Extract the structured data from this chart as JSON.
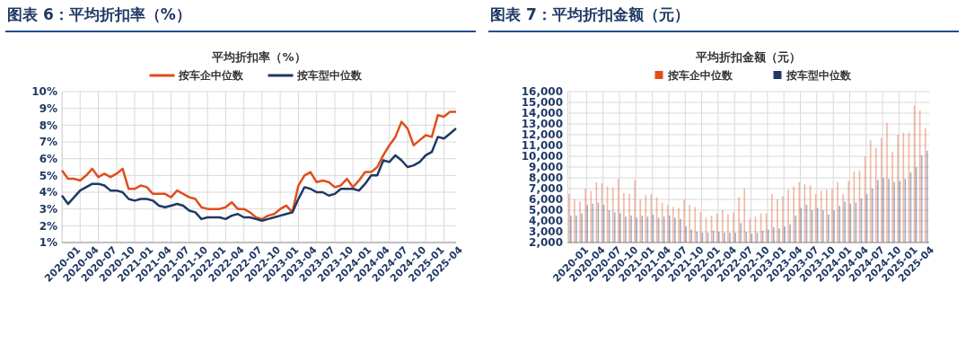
{
  "chart_data": [
    {
      "type": "line",
      "title": "图表 6：平均折扣率（%）",
      "subtitle": "平均折扣率（%）",
      "categories": [
        "2020-01",
        null,
        null,
        "2020-04",
        null,
        null,
        "2020-07",
        null,
        null,
        "2020-10",
        null,
        null,
        "2021-01",
        null,
        null,
        "2021-04",
        null,
        null,
        "2021-07",
        null,
        null,
        "2021-10",
        null,
        null,
        "2022-01",
        null,
        null,
        "2022-04",
        null,
        null,
        "2022-07",
        null,
        null,
        "2022-10",
        null,
        null,
        "2023-01",
        null,
        null,
        "2023-04",
        null,
        null,
        "2023-07",
        null,
        null,
        "2023-10",
        null,
        null,
        "2024-01",
        null,
        null,
        "2024-04",
        null,
        null,
        "2024-07",
        null,
        null,
        "2024-10",
        null,
        null,
        "2025-01",
        null,
        null,
        "2025-04",
        null,
        null
      ],
      "series": [
        {
          "name": "按车企中位数",
          "color": "#e04e1b",
          "values": [
            5.3,
            4.8,
            4.8,
            4.7,
            5.0,
            5.4,
            4.9,
            5.1,
            4.9,
            5.1,
            5.4,
            4.2,
            4.2,
            4.4,
            4.3,
            3.9,
            3.9,
            3.9,
            3.7,
            4.1,
            3.9,
            3.7,
            3.6,
            3.1,
            3.0,
            3.0,
            3.0,
            3.1,
            3.4,
            3.0,
            3.0,
            2.8,
            2.5,
            2.4,
            2.6,
            2.7,
            3.0,
            3.2,
            2.8,
            4.4,
            5.0,
            5.2,
            4.6,
            4.7,
            4.6,
            4.3,
            4.4,
            4.8,
            4.3,
            4.7,
            5.2,
            5.2,
            5.5,
            6.2,
            6.8,
            7.3,
            8.2,
            7.8,
            6.8,
            7.1,
            7.4,
            7.3,
            8.6,
            8.5,
            8.8,
            8.8
          ]
        },
        {
          "name": "按车型中位数",
          "color": "#1f3864",
          "values": [
            3.8,
            3.3,
            3.7,
            4.1,
            4.3,
            4.5,
            4.5,
            4.4,
            4.1,
            4.1,
            4.0,
            3.6,
            3.5,
            3.6,
            3.6,
            3.5,
            3.2,
            3.1,
            3.2,
            3.3,
            3.2,
            2.9,
            2.8,
            2.4,
            2.5,
            2.5,
            2.5,
            2.4,
            2.6,
            2.7,
            2.5,
            2.5,
            2.4,
            2.3,
            2.4,
            2.5,
            2.6,
            2.7,
            2.8,
            3.6,
            4.3,
            4.2,
            4.0,
            4.0,
            3.8,
            3.9,
            4.2,
            4.2,
            4.2,
            4.1,
            4.5,
            5.0,
            5.0,
            5.9,
            5.8,
            6.2,
            5.9,
            5.5,
            5.6,
            5.8,
            6.2,
            6.4,
            7.3,
            7.2,
            7.5,
            7.8
          ]
        }
      ],
      "ylim": [
        1,
        10
      ],
      "yticks": [
        {
          "value": 1,
          "label": "1%"
        },
        {
          "value": 2,
          "label": "2%"
        },
        {
          "value": 3,
          "label": "3%"
        },
        {
          "value": 4,
          "label": "4%"
        },
        {
          "value": 5,
          "label": "5%"
        },
        {
          "value": 6,
          "label": "6%"
        },
        {
          "value": 7,
          "label": "7%"
        },
        {
          "value": 8,
          "label": "8%"
        },
        {
          "value": 9,
          "label": "9%"
        },
        {
          "value": 10,
          "label": "10%"
        }
      ],
      "grid": true,
      "legend": "top",
      "marker": "none",
      "line_style": "solid"
    },
    {
      "type": "bar",
      "title": "图表 7：平均折扣金额（元）",
      "subtitle": "平均折扣金额（元）",
      "categories": [
        "2020-01",
        null,
        null,
        "2020-04",
        null,
        null,
        "2020-07",
        null,
        null,
        "2020-10",
        null,
        null,
        "2021-01",
        null,
        null,
        "2021-04",
        null,
        null,
        "2021-07",
        null,
        null,
        "2021-10",
        null,
        null,
        "2022-01",
        null,
        null,
        "2022-04",
        null,
        null,
        "2022-07",
        null,
        null,
        "2022-10",
        null,
        null,
        "2023-01",
        null,
        null,
        "2023-04",
        null,
        null,
        "2023-07",
        null,
        null,
        "2023-10",
        null,
        null,
        "2024-01",
        null,
        null,
        "2024-04",
        null,
        null,
        "2024-07",
        null,
        null,
        "2024-10",
        null,
        null,
        "2025-01",
        null,
        null,
        "2025-04",
        null,
        null
      ],
      "series": [
        {
          "name": "按车企中位数",
          "color": "#e04e1b",
          "values": [
            6500,
            6000,
            5800,
            7000,
            6800,
            7600,
            7500,
            7200,
            7100,
            7900,
            6600,
            6500,
            7800,
            6000,
            6400,
            6500,
            6200,
            5700,
            5500,
            5300,
            5200,
            6000,
            5500,
            5300,
            4800,
            4300,
            4500,
            4700,
            5000,
            4600,
            4800,
            6200,
            7000,
            4200,
            4400,
            4700,
            4700,
            6500,
            6000,
            6300,
            6900,
            7200,
            7600,
            7400,
            7300,
            6500,
            6800,
            6900,
            7000,
            7600,
            6500,
            7700,
            8600,
            8700,
            10000,
            11500,
            10800,
            11700,
            13100,
            10400,
            12000,
            12200,
            12200,
            14700,
            14300,
            12600
          ]
        },
        {
          "name": "按车型中位数",
          "color": "#1f3864",
          "values": [
            4500,
            4500,
            4700,
            5500,
            5600,
            5700,
            5500,
            5000,
            4800,
            4700,
            4400,
            4500,
            4300,
            4500,
            4400,
            4600,
            4300,
            4400,
            4500,
            4300,
            4200,
            3500,
            3200,
            3000,
            2900,
            2900,
            3100,
            3000,
            2900,
            2900,
            2900,
            3800,
            3000,
            2800,
            2900,
            3100,
            3200,
            3400,
            3300,
            3500,
            3700,
            4500,
            5200,
            5500,
            5000,
            5200,
            5000,
            4600,
            5000,
            5400,
            5800,
            5600,
            5700,
            6100,
            6500,
            7000,
            7800,
            8000,
            7900,
            7600,
            7700,
            7900,
            8500,
            9000,
            10100,
            10500
          ]
        }
      ],
      "ylim": [
        2000,
        16000
      ],
      "yticks": [
        {
          "value": 2000,
          "label": "2,000"
        },
        {
          "value": 3000,
          "label": "3,000"
        },
        {
          "value": 4000,
          "label": "4,000"
        },
        {
          "value": 5000,
          "label": "5,000"
        },
        {
          "value": 6000,
          "label": "6,000"
        },
        {
          "value": 7000,
          "label": "7,000"
        },
        {
          "value": 8000,
          "label": "8,000"
        },
        {
          "value": 9000,
          "label": "9,000"
        },
        {
          "value": 10000,
          "label": "10,000"
        },
        {
          "value": 11000,
          "label": "11,000"
        },
        {
          "value": 12000,
          "label": "12,000"
        },
        {
          "value": 13000,
          "label": "13,000"
        },
        {
          "value": 14000,
          "label": "14,000"
        },
        {
          "value": 15000,
          "label": "15,000"
        },
        {
          "value": 16000,
          "label": "16,000"
        }
      ],
      "grid": true,
      "legend": "top"
    }
  ]
}
